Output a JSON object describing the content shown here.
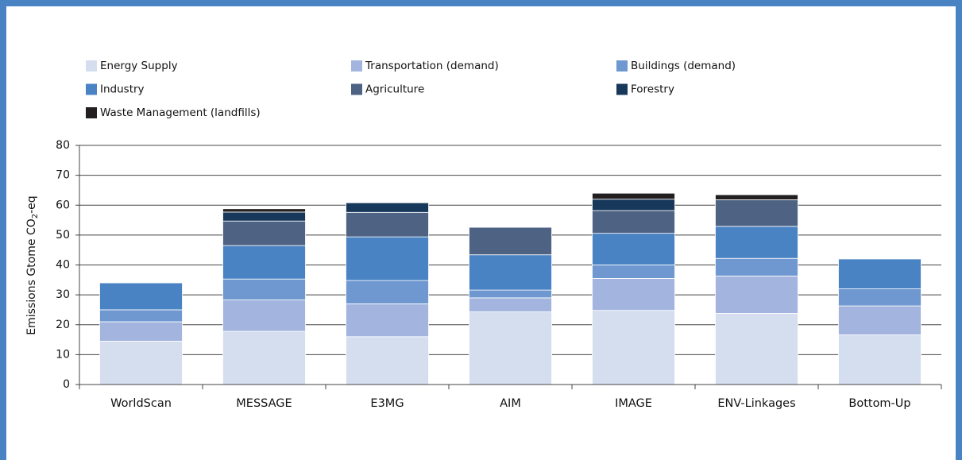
{
  "chart_data": {
    "type": "stacked_bar",
    "y_label": {
      "main": "Emissions Gtome CO",
      "sub": "2",
      "end": "-eq"
    },
    "categories": [
      "WorldScan",
      "MESSAGE",
      "E3MG",
      "AIM",
      "IMAGE",
      "ENV-Linkages",
      "Bottom-Up"
    ],
    "series": [
      {
        "name": "Energy Supply",
        "color": "#d5deef",
        "values": [
          14.5,
          17.8,
          16,
          24.3,
          24.8,
          23.8,
          16.6
        ]
      },
      {
        "name": "Transportation (demand)",
        "color": "#a3b5de",
        "values": [
          6.5,
          10.5,
          11,
          4.7,
          10.7,
          12.5,
          9.7
        ]
      },
      {
        "name": "Buildings (demand)",
        "color": "#6f98d0",
        "values": [
          4,
          7,
          7.8,
          2.6,
          4.5,
          5.9,
          5.7
        ]
      },
      {
        "name": "Industry",
        "color": "#4a83c4",
        "values": [
          9,
          11.2,
          14.6,
          11.8,
          10.6,
          10.7,
          10
        ]
      },
      {
        "name": "Agriculture",
        "color": "#4e6283",
        "values": [
          0,
          8.2,
          8.2,
          9.2,
          7.6,
          8.9,
          0
        ]
      },
      {
        "name": "Forestry",
        "color": "#17385a",
        "values": [
          0,
          3,
          3.2,
          0,
          3.8,
          0,
          0
        ]
      },
      {
        "name": "Waste Management (landfills)",
        "color": "#231f20",
        "values": [
          0,
          1.1,
          0,
          0,
          2,
          1.7,
          0
        ]
      }
    ],
    "ylim": [
      0,
      80
    ],
    "yticks": [
      0,
      10,
      20,
      30,
      40,
      50,
      60,
      70,
      80
    ],
    "grid": true
  }
}
